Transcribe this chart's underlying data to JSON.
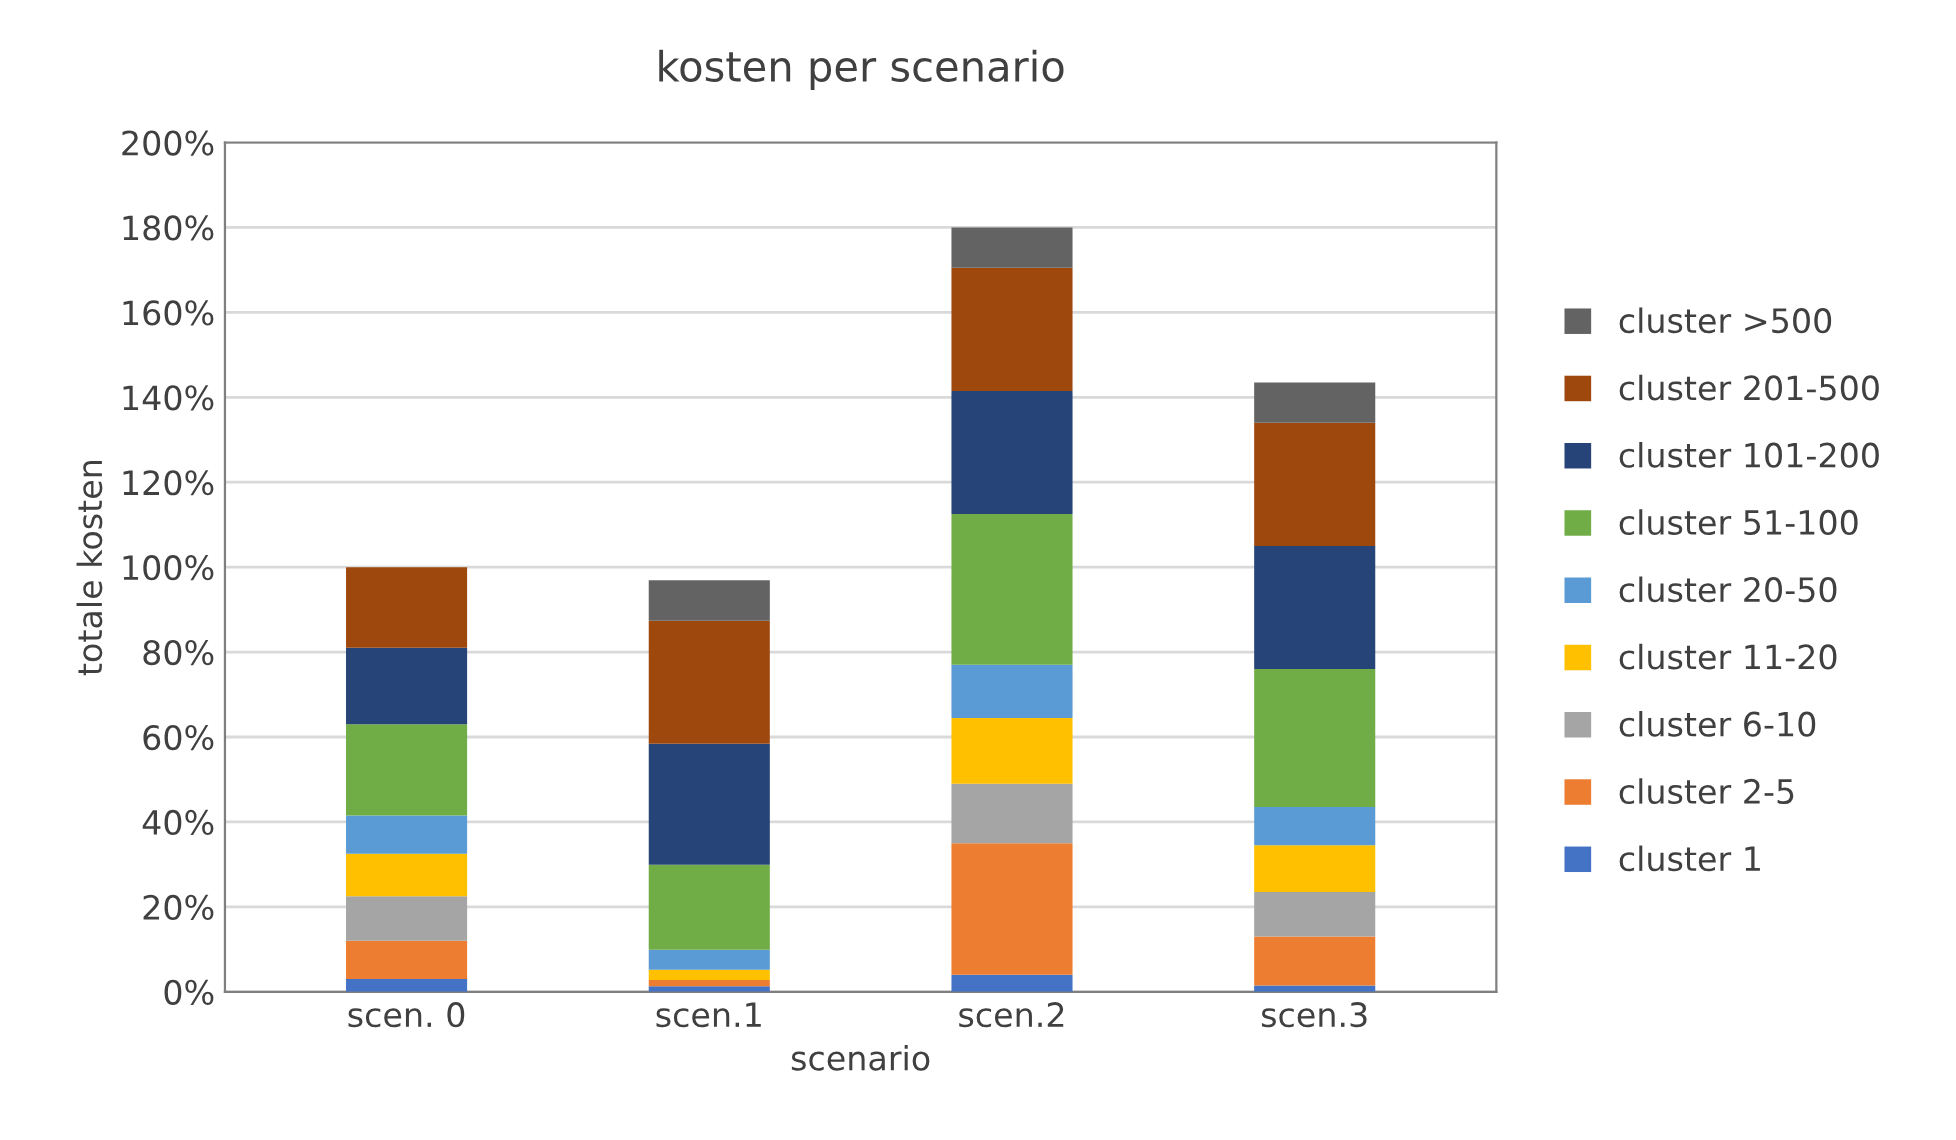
{
  "chart_data": {
    "type": "bar",
    "title": "kosten per scenario",
    "xlabel": "scenario",
    "ylabel": "totale kosten",
    "categories": [
      "scen. 0",
      "scen.1",
      "scen.2",
      "scen.3"
    ],
    "stacked": true,
    "grid": "y",
    "legend": "right",
    "ylim": [
      0,
      200
    ],
    "yticks": [
      {
        "value": 0,
        "label": "0%"
      },
      {
        "value": 20,
        "label": "20%"
      },
      {
        "value": 40,
        "label": "40%"
      },
      {
        "value": 60,
        "label": "60%"
      },
      {
        "value": 80,
        "label": "80%"
      },
      {
        "value": 100,
        "label": "100%"
      },
      {
        "value": 120,
        "label": "120%"
      },
      {
        "value": 140,
        "label": "140%"
      },
      {
        "value": 160,
        "label": "160%"
      },
      {
        "value": 180,
        "label": "180%"
      },
      {
        "value": 200,
        "label": "200%"
      }
    ],
    "series": [
      {
        "name": "cluster 1",
        "color": "#4472c4",
        "values": [
          3,
          1.3,
          4,
          1.5
        ]
      },
      {
        "name": "cluster 2-5",
        "color": "#ed7d31",
        "values": [
          9,
          1.5,
          31,
          11.5
        ]
      },
      {
        "name": "cluster 6-10",
        "color": "#a5a5a5",
        "values": [
          10.5,
          null,
          14,
          10.5
        ]
      },
      {
        "name": "cluster 11-20",
        "color": "#ffc000",
        "values": [
          10,
          2.4,
          15.5,
          11
        ]
      },
      {
        "name": "cluster 20-50",
        "color": "#5b9bd5",
        "values": [
          9,
          4.7,
          12.5,
          9
        ]
      },
      {
        "name": "cluster 51-100",
        "color": "#70ad47",
        "values": [
          21.5,
          20,
          35.5,
          32.5
        ]
      },
      {
        "name": "cluster 101-200",
        "color": "#264478",
        "values": [
          18,
          28.5,
          29,
          29
        ]
      },
      {
        "name": "cluster 201-500",
        "color": "#9e480e",
        "values": [
          19,
          29,
          29,
          29
        ]
      },
      {
        "name": "cluster >500",
        "color": "#636363",
        "values": [
          0,
          9.5,
          9.5,
          9.5
        ]
      }
    ]
  }
}
